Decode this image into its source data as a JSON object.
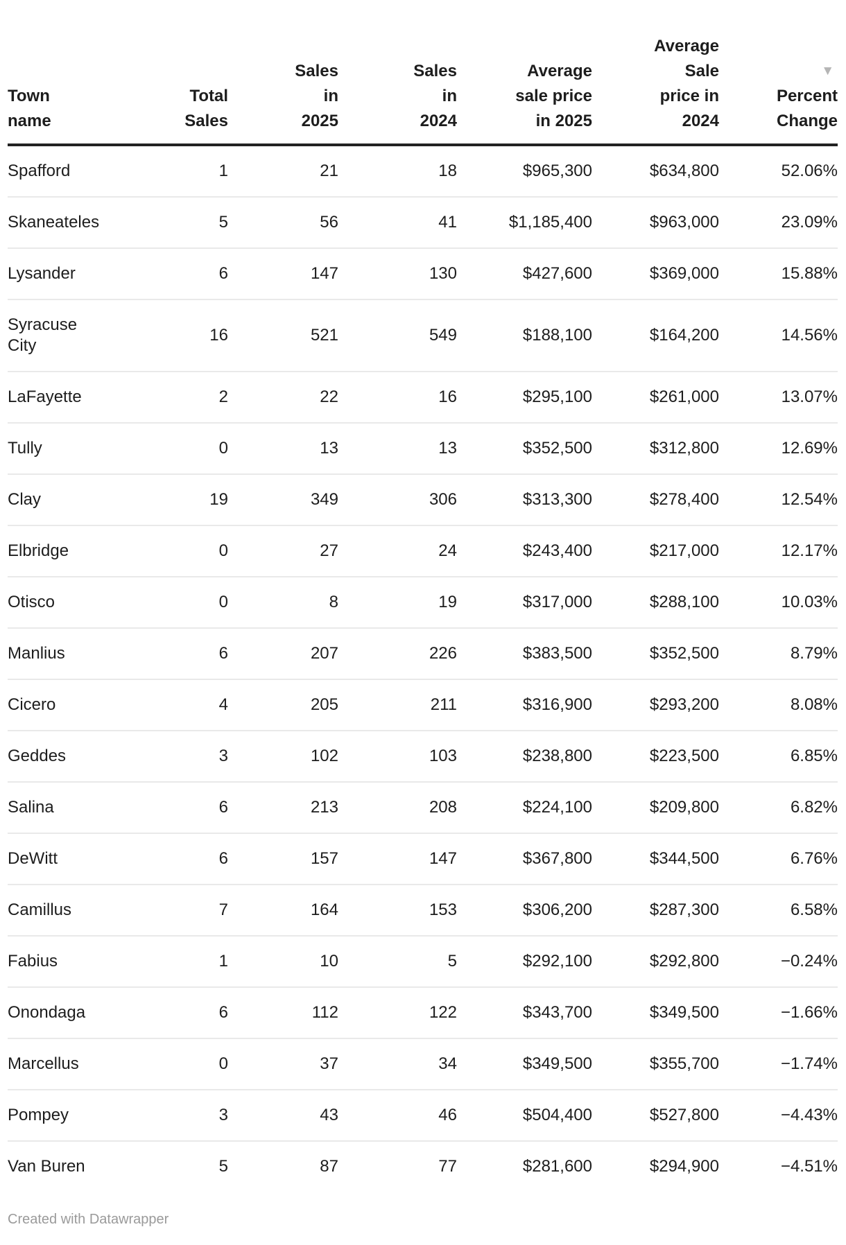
{
  "colors": {
    "header_text": "#1d1d1d",
    "body_text": "#1d1d1d",
    "header_border": "#222222",
    "row_divider": "#e9e9e9",
    "sort_icon": "#b5b5b5",
    "footer_text": "#9a9a9a"
  },
  "table": {
    "sort_icon": "▼",
    "sort_direction": "descending",
    "columns": [
      {
        "id": "town-name",
        "align": "left",
        "label_lines": [
          "Town",
          "name"
        ],
        "sorted": false
      },
      {
        "id": "total-sales",
        "align": "right",
        "label_lines": [
          "Total",
          "Sales"
        ],
        "sorted": false
      },
      {
        "id": "sales-in-2025",
        "align": "right",
        "label_lines": [
          "Sales",
          "in",
          "2025"
        ],
        "sorted": false
      },
      {
        "id": "sales-in-2024",
        "align": "right",
        "label_lines": [
          "Sales",
          "in",
          "2024"
        ],
        "sorted": false
      },
      {
        "id": "avg-sale-price-2025",
        "align": "right",
        "label_lines": [
          "Average",
          "sale price",
          "in 2025"
        ],
        "sorted": false
      },
      {
        "id": "avg-sale-price-2024",
        "align": "right",
        "label_lines": [
          "Average",
          "Sale",
          "price in",
          "2024"
        ],
        "sorted": false
      },
      {
        "id": "percent-change",
        "align": "right",
        "label_lines": [
          "Percent",
          "Change"
        ],
        "sorted": true
      }
    ],
    "rows": [
      [
        "Spafford",
        "1",
        "21",
        "18",
        "$965,300",
        "$634,800",
        "52.06%"
      ],
      [
        "Skaneateles",
        "5",
        "56",
        "41",
        "$1,185,400",
        "$963,000",
        "23.09%"
      ],
      [
        "Lysander",
        "6",
        "147",
        "130",
        "$427,600",
        "$369,000",
        "15.88%"
      ],
      [
        "Syracuse City",
        "16",
        "521",
        "549",
        "$188,100",
        "$164,200",
        "14.56%"
      ],
      [
        "LaFayette",
        "2",
        "22",
        "16",
        "$295,100",
        "$261,000",
        "13.07%"
      ],
      [
        "Tully",
        "0",
        "13",
        "13",
        "$352,500",
        "$312,800",
        "12.69%"
      ],
      [
        "Clay",
        "19",
        "349",
        "306",
        "$313,300",
        "$278,400",
        "12.54%"
      ],
      [
        "Elbridge",
        "0",
        "27",
        "24",
        "$243,400",
        "$217,000",
        "12.17%"
      ],
      [
        "Otisco",
        "0",
        "8",
        "19",
        "$317,000",
        "$288,100",
        "10.03%"
      ],
      [
        "Manlius",
        "6",
        "207",
        "226",
        "$383,500",
        "$352,500",
        "8.79%"
      ],
      [
        "Cicero",
        "4",
        "205",
        "211",
        "$316,900",
        "$293,200",
        "8.08%"
      ],
      [
        "Geddes",
        "3",
        "102",
        "103",
        "$238,800",
        "$223,500",
        "6.85%"
      ],
      [
        "Salina",
        "6",
        "213",
        "208",
        "$224,100",
        "$209,800",
        "6.82%"
      ],
      [
        "DeWitt",
        "6",
        "157",
        "147",
        "$367,800",
        "$344,500",
        "6.76%"
      ],
      [
        "Camillus",
        "7",
        "164",
        "153",
        "$306,200",
        "$287,300",
        "6.58%"
      ],
      [
        "Fabius",
        "1",
        "10",
        "5",
        "$292,100",
        "$292,800",
        "−0.24%"
      ],
      [
        "Onondaga",
        "6",
        "112",
        "122",
        "$343,700",
        "$349,500",
        "−1.66%"
      ],
      [
        "Marcellus",
        "0",
        "37",
        "34",
        "$349,500",
        "$355,700",
        "−1.74%"
      ],
      [
        "Pompey",
        "3",
        "43",
        "46",
        "$504,400",
        "$527,800",
        "−4.43%"
      ],
      [
        "Van Buren",
        "5",
        "87",
        "77",
        "$281,600",
        "$294,900",
        "−4.51%"
      ]
    ]
  },
  "chart_data": {
    "type": "table",
    "columns": [
      "Town name",
      "Total Sales",
      "Sales in 2025",
      "Sales in 2024",
      "Average sale price in 2025",
      "Average Sale price in 2024",
      "Percent Change"
    ],
    "rows": [
      [
        "Spafford",
        1,
        21,
        18,
        965300,
        634800,
        52.06
      ],
      [
        "Skaneateles",
        5,
        56,
        41,
        1185400,
        963000,
        23.09
      ],
      [
        "Lysander",
        6,
        147,
        130,
        427600,
        369000,
        15.88
      ],
      [
        "Syracuse City",
        16,
        521,
        549,
        188100,
        164200,
        14.56
      ],
      [
        "LaFayette",
        2,
        22,
        16,
        295100,
        261000,
        13.07
      ],
      [
        "Tully",
        0,
        13,
        13,
        352500,
        312800,
        12.69
      ],
      [
        "Clay",
        19,
        349,
        306,
        313300,
        278400,
        12.54
      ],
      [
        "Elbridge",
        0,
        27,
        24,
        243400,
        217000,
        12.17
      ],
      [
        "Otisco",
        0,
        8,
        19,
        317000,
        288100,
        10.03
      ],
      [
        "Manlius",
        6,
        207,
        226,
        383500,
        352500,
        8.79
      ],
      [
        "Cicero",
        4,
        205,
        211,
        316900,
        293200,
        8.08
      ],
      [
        "Geddes",
        3,
        102,
        103,
        238800,
        223500,
        6.85
      ],
      [
        "Salina",
        6,
        213,
        208,
        224100,
        209800,
        6.82
      ],
      [
        "DeWitt",
        6,
        157,
        147,
        367800,
        344500,
        6.76
      ],
      [
        "Camillus",
        7,
        164,
        153,
        306200,
        287300,
        6.58
      ],
      [
        "Fabius",
        1,
        10,
        5,
        292100,
        292800,
        -0.24
      ],
      [
        "Onondaga",
        6,
        112,
        122,
        343700,
        349500,
        -1.66
      ],
      [
        "Marcellus",
        0,
        37,
        34,
        349500,
        355700,
        -1.74
      ],
      [
        "Pompey",
        3,
        43,
        46,
        504400,
        527800,
        -4.43
      ],
      [
        "Van Buren",
        5,
        87,
        77,
        281600,
        294900,
        -4.51
      ]
    ],
    "sort": {
      "column": "Percent Change",
      "direction": "desc"
    },
    "footer": "Created with Datawrapper"
  },
  "footer": {
    "credit": "Created with Datawrapper"
  }
}
